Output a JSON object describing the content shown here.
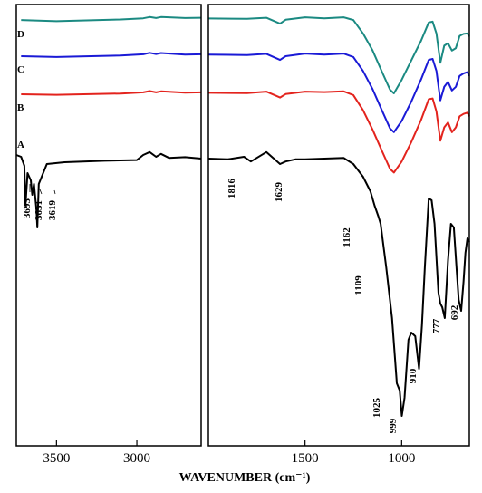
{
  "chart_data": {
    "type": "line",
    "title": "",
    "xlabel": "WAVENUMBER (cm⁻¹)",
    "ylabel": "",
    "x_reversed": true,
    "broken_axis": true,
    "panels": [
      {
        "xlim": [
          3750,
          2600
        ],
        "ticks": [
          3500,
          3000
        ]
      },
      {
        "xlim": [
          2000,
          650
        ],
        "ticks": [
          1500,
          1000
        ]
      }
    ],
    "grid": false,
    "series": [
      {
        "name": "D",
        "color": "#1b8a82",
        "points": [
          [
            3720,
            0.85
          ],
          [
            3500,
            0.8
          ],
          [
            3100,
            0.87
          ],
          [
            2960,
            0.92
          ],
          [
            2920,
            0.97
          ],
          [
            2880,
            0.93
          ],
          [
            2850,
            0.97
          ],
          [
            2700,
            0.93
          ],
          [
            2600,
            0.94
          ],
          [
            2000,
            0.91
          ],
          [
            1800,
            0.9
          ],
          [
            1700,
            0.94
          ],
          [
            1629,
            0.7
          ],
          [
            1600,
            0.86
          ],
          [
            1500,
            0.96
          ],
          [
            1400,
            0.92
          ],
          [
            1300,
            0.96
          ],
          [
            1250,
            0.85
          ],
          [
            1200,
            0.3
          ],
          [
            1150,
            -0.4
          ],
          [
            1100,
            -1.3
          ],
          [
            1060,
            -2.0
          ],
          [
            1040,
            -2.15
          ],
          [
            1000,
            -1.6
          ],
          [
            950,
            -0.8
          ],
          [
            900,
            0.0
          ],
          [
            860,
            0.75
          ],
          [
            840,
            0.78
          ],
          [
            820,
            0.3
          ],
          [
            800,
            -0.9
          ],
          [
            780,
            -0.2
          ],
          [
            760,
            -0.1
          ],
          [
            740,
            -0.4
          ],
          [
            720,
            -0.3
          ],
          [
            700,
            0.2
          ],
          [
            680,
            0.28
          ],
          [
            660,
            0.3
          ],
          [
            650,
            0.18
          ]
        ]
      },
      {
        "name": "C",
        "color": "#1a1ad6",
        "points": [
          [
            3720,
            0.85
          ],
          [
            3500,
            0.82
          ],
          [
            3100,
            0.88
          ],
          [
            2960,
            0.93
          ],
          [
            2920,
            0.99
          ],
          [
            2880,
            0.94
          ],
          [
            2850,
            0.98
          ],
          [
            2700,
            0.92
          ],
          [
            2600,
            0.93
          ],
          [
            2000,
            0.92
          ],
          [
            1800,
            0.9
          ],
          [
            1700,
            0.95
          ],
          [
            1629,
            0.7
          ],
          [
            1600,
            0.85
          ],
          [
            1500,
            0.96
          ],
          [
            1400,
            0.92
          ],
          [
            1300,
            0.96
          ],
          [
            1250,
            0.82
          ],
          [
            1200,
            0.25
          ],
          [
            1150,
            -0.5
          ],
          [
            1100,
            -1.4
          ],
          [
            1060,
            -2.1
          ],
          [
            1040,
            -2.25
          ],
          [
            1000,
            -1.8
          ],
          [
            950,
            -1.0
          ],
          [
            900,
            -0.1
          ],
          [
            860,
            0.7
          ],
          [
            840,
            0.74
          ],
          [
            820,
            0.25
          ],
          [
            800,
            -0.95
          ],
          [
            780,
            -0.4
          ],
          [
            760,
            -0.2
          ],
          [
            740,
            -0.55
          ],
          [
            720,
            -0.4
          ],
          [
            700,
            0.05
          ],
          [
            680,
            0.15
          ],
          [
            660,
            0.2
          ],
          [
            650,
            0.05
          ]
        ]
      },
      {
        "name": "B",
        "color": "#e3231d",
        "points": [
          [
            3720,
            0.85
          ],
          [
            3500,
            0.83
          ],
          [
            3100,
            0.88
          ],
          [
            2960,
            0.93
          ],
          [
            2920,
            0.98
          ],
          [
            2880,
            0.93
          ],
          [
            2850,
            0.97
          ],
          [
            2700,
            0.92
          ],
          [
            2600,
            0.93
          ],
          [
            2000,
            0.91
          ],
          [
            1800,
            0.9
          ],
          [
            1700,
            0.96
          ],
          [
            1629,
            0.72
          ],
          [
            1600,
            0.86
          ],
          [
            1500,
            0.96
          ],
          [
            1400,
            0.94
          ],
          [
            1300,
            0.97
          ],
          [
            1250,
            0.82
          ],
          [
            1200,
            0.2
          ],
          [
            1150,
            -0.6
          ],
          [
            1100,
            -1.5
          ],
          [
            1060,
            -2.2
          ],
          [
            1040,
            -2.35
          ],
          [
            1000,
            -1.9
          ],
          [
            950,
            -1.1
          ],
          [
            900,
            -0.2
          ],
          [
            860,
            0.65
          ],
          [
            840,
            0.68
          ],
          [
            820,
            0.15
          ],
          [
            800,
            -1.05
          ],
          [
            780,
            -0.5
          ],
          [
            760,
            -0.3
          ],
          [
            740,
            -0.7
          ],
          [
            720,
            -0.5
          ],
          [
            700,
            -0.05
          ],
          [
            680,
            0.05
          ],
          [
            660,
            0.1
          ],
          [
            650,
            -0.05
          ]
        ]
      },
      {
        "name": "A",
        "color": "#000000",
        "points": [
          [
            3750,
            0.3
          ],
          [
            3720,
            0.25
          ],
          [
            3700,
            0.0
          ],
          [
            3693,
            -1.1
          ],
          [
            3680,
            -0.2
          ],
          [
            3660,
            -0.4
          ],
          [
            3651,
            -0.8
          ],
          [
            3640,
            -0.5
          ],
          [
            3625,
            -1.2
          ],
          [
            3619,
            -1.7
          ],
          [
            3610,
            -0.5
          ],
          [
            3560,
            0.05
          ],
          [
            3450,
            0.1
          ],
          [
            3200,
            0.14
          ],
          [
            3000,
            0.16
          ],
          [
            2960,
            0.3
          ],
          [
            2920,
            0.38
          ],
          [
            2880,
            0.25
          ],
          [
            2850,
            0.33
          ],
          [
            2800,
            0.22
          ],
          [
            2700,
            0.24
          ],
          [
            2600,
            0.2
          ],
          [
            2000,
            0.2
          ],
          [
            1900,
            0.18
          ],
          [
            1816,
            0.25
          ],
          [
            1780,
            0.12
          ],
          [
            1700,
            0.38
          ],
          [
            1629,
            0.05
          ],
          [
            1600,
            0.12
          ],
          [
            1550,
            0.18
          ],
          [
            1500,
            0.18
          ],
          [
            1400,
            0.2
          ],
          [
            1300,
            0.22
          ],
          [
            1250,
            0.05
          ],
          [
            1200,
            -0.3
          ],
          [
            1162,
            -0.7
          ],
          [
            1140,
            -1.1
          ],
          [
            1120,
            -1.4
          ],
          [
            1109,
            -1.6
          ],
          [
            1080,
            -2.8
          ],
          [
            1050,
            -4.2
          ],
          [
            1025,
            -6.0
          ],
          [
            1010,
            -6.2
          ],
          [
            999,
            -6.9
          ],
          [
            985,
            -6.4
          ],
          [
            965,
            -4.8
          ],
          [
            950,
            -4.6
          ],
          [
            930,
            -4.7
          ],
          [
            910,
            -5.6
          ],
          [
            895,
            -4.4
          ],
          [
            880,
            -2.8
          ],
          [
            860,
            -0.9
          ],
          [
            845,
            -0.95
          ],
          [
            830,
            -1.6
          ],
          [
            810,
            -3.5
          ],
          [
            800,
            -3.8
          ],
          [
            790,
            -3.9
          ],
          [
            777,
            -4.2
          ],
          [
            760,
            -2.6
          ],
          [
            745,
            -1.6
          ],
          [
            730,
            -1.7
          ],
          [
            715,
            -2.9
          ],
          [
            705,
            -3.7
          ],
          [
            692,
            -4.0
          ],
          [
            680,
            -3.2
          ],
          [
            670,
            -2.4
          ],
          [
            660,
            -2.0
          ],
          [
            650,
            -2.1
          ]
        ]
      }
    ],
    "series_labels": [
      {
        "name": "D",
        "text": "D"
      },
      {
        "name": "C",
        "text": "C"
      },
      {
        "name": "B",
        "text": "B"
      },
      {
        "name": "A",
        "text": "A"
      }
    ],
    "annotations": [
      "3693",
      "3651",
      "3619",
      "1816",
      "1629",
      "1162",
      "1109",
      "1025",
      "999",
      "910",
      "777",
      "692"
    ]
  }
}
